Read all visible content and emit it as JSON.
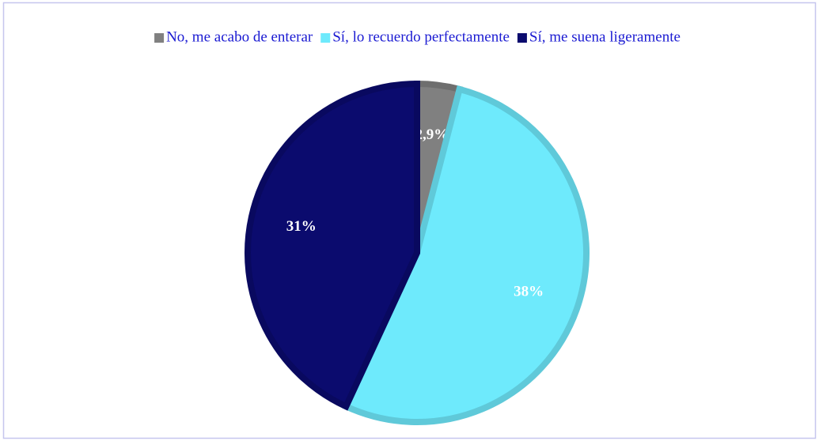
{
  "chart_data": {
    "type": "pie",
    "categories": [
      "No, me acabo de enterar",
      "Sí, lo recuerdo perfectamente",
      "Sí, me suena ligeramente"
    ],
    "values": [
      2.9,
      38,
      31
    ],
    "value_labels": [
      "2,9%",
      "38%",
      "31%"
    ],
    "colors": [
      "#808080",
      "#6eeafc",
      "#0b0b6e"
    ],
    "legend": "top"
  }
}
